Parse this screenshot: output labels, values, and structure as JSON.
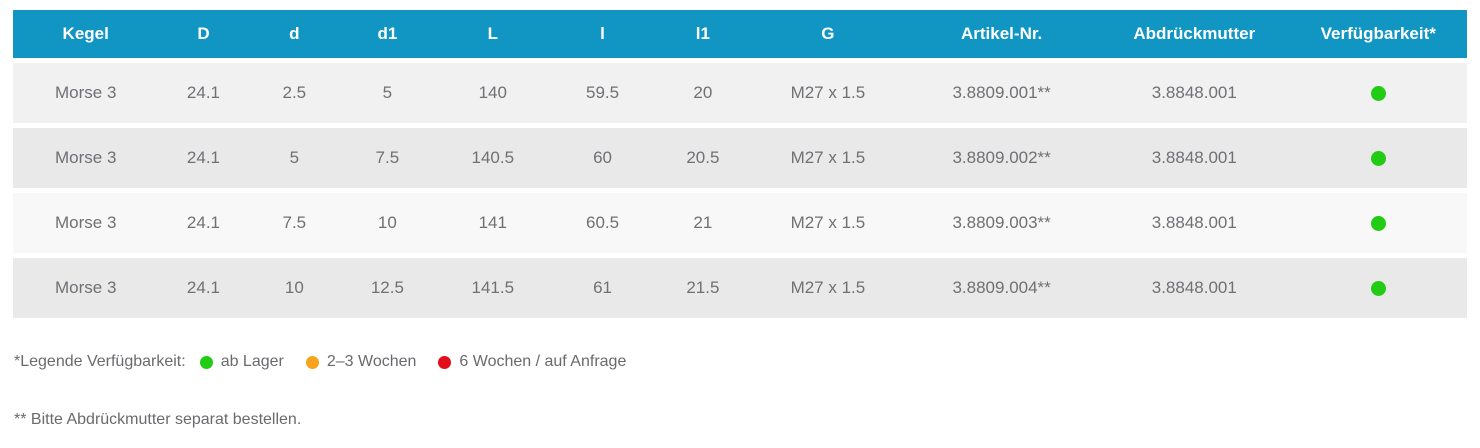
{
  "table": {
    "columns": [
      {
        "key": "kegel",
        "label": "Kegel"
      },
      {
        "key": "D",
        "label": "D"
      },
      {
        "key": "d",
        "label": "d"
      },
      {
        "key": "d1",
        "label": "d1"
      },
      {
        "key": "L",
        "label": "L"
      },
      {
        "key": "l",
        "label": "l"
      },
      {
        "key": "l1",
        "label": "l1"
      },
      {
        "key": "G",
        "label": "G"
      },
      {
        "key": "artikel_nr",
        "label": "Artikel-Nr."
      },
      {
        "key": "abdrueckmutter",
        "label": "Abdrückmutter"
      },
      {
        "key": "verfuegbarkeit",
        "label": "Verfügbarkeit*"
      }
    ],
    "rows": [
      {
        "kegel": "Morse 3",
        "D": "24.1",
        "d": "2.5",
        "d1": "5",
        "L": "140",
        "l": "59.5",
        "l1": "20",
        "G": "M27 x 1.5",
        "artikel_nr": "3.8809.001**",
        "abdrueckmutter": "3.8848.001",
        "verfuegbarkeit": "green"
      },
      {
        "kegel": "Morse 3",
        "D": "24.1",
        "d": "5",
        "d1": "7.5",
        "L": "140.5",
        "l": "60",
        "l1": "20.5",
        "G": "M27 x 1.5",
        "artikel_nr": "3.8809.002**",
        "abdrueckmutter": "3.8848.001",
        "verfuegbarkeit": "green"
      },
      {
        "kegel": "Morse 3",
        "D": "24.1",
        "d": "7.5",
        "d1": "10",
        "L": "141",
        "l": "60.5",
        "l1": "21",
        "G": "M27 x 1.5",
        "artikel_nr": "3.8809.003**",
        "abdrueckmutter": "3.8848.001",
        "verfuegbarkeit": "green"
      },
      {
        "kegel": "Morse 3",
        "D": "24.1",
        "d": "10",
        "d1": "12.5",
        "L": "141.5",
        "l": "61",
        "l1": "21.5",
        "G": "M27 x 1.5",
        "artikel_nr": "3.8809.004**",
        "abdrueckmutter": "3.8848.001",
        "verfuegbarkeit": "green"
      }
    ]
  },
  "legend": {
    "label": "*Legende Verfügbarkeit:",
    "items": [
      {
        "status": "green",
        "label": "ab Lager"
      },
      {
        "status": "orange",
        "label": "2–3 Wochen"
      },
      {
        "status": "red",
        "label": "6 Wochen / auf Anfrage"
      }
    ]
  },
  "footnote": "** Bitte Abdrückmutter separat bestellen.",
  "colors": {
    "header_bg": "#1195c3",
    "header_text": "#ffffff",
    "status": {
      "green": "#22cb14",
      "orange": "#f7a41d",
      "red": "#e40e1b"
    }
  }
}
